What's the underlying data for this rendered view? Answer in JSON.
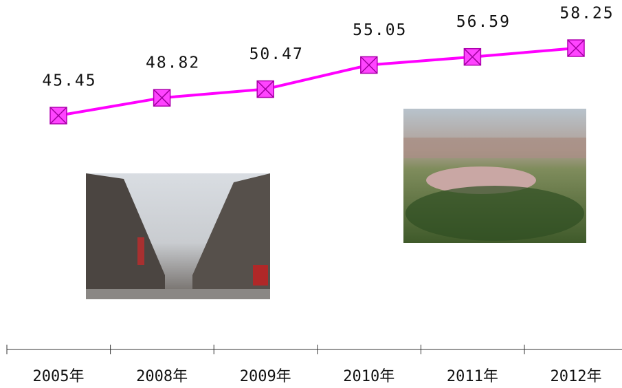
{
  "chart_data": {
    "type": "line",
    "categories": [
      "2005年",
      "2008年",
      "2009年",
      "2010年",
      "2011年",
      "2012年"
    ],
    "values": [
      45.45,
      48.82,
      50.47,
      55.05,
      56.59,
      58.25
    ],
    "color": "#ff00ff"
  }
}
